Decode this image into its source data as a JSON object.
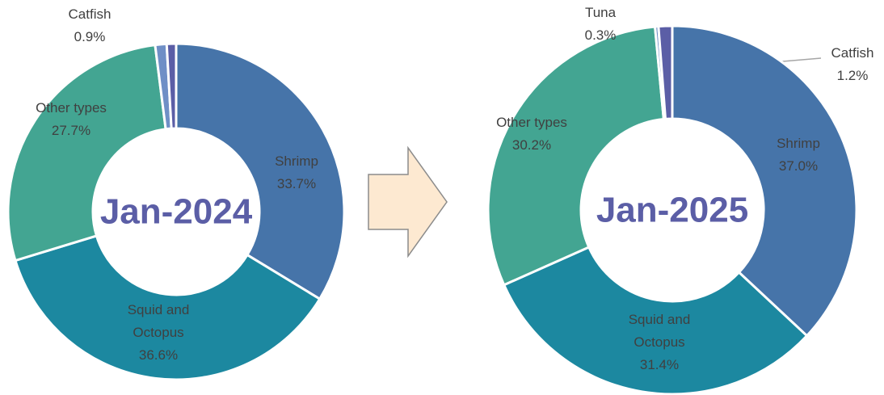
{
  "chart_data": [
    {
      "type": "donut",
      "title": "Jan-2024",
      "categories": [
        "Shrimp",
        "Squid and Octopus",
        "Other types",
        null,
        "Catfish"
      ],
      "values": [
        33.7,
        36.6,
        27.7,
        1.1,
        0.9
      ],
      "value_labels": [
        "33.7%",
        "36.6%",
        "27.7%",
        null,
        "0.9%"
      ],
      "colors": [
        "#4674a9",
        "#1c88a0",
        "#43a592",
        "#6f8fc6",
        "#5b5ea6"
      ]
    },
    {
      "type": "donut",
      "title": "Jan-2025",
      "categories": [
        "Shrimp",
        "Squid and Octopus",
        "Other types",
        "Tuna",
        "Catfish"
      ],
      "values": [
        37.0,
        31.4,
        30.2,
        0.3,
        1.2
      ],
      "value_labels": [
        "37.0%",
        "31.4%",
        "30.2%",
        "0.3%",
        "1.2%"
      ],
      "colors": [
        "#4674a9",
        "#1c88a0",
        "#43a592",
        "#6f8fc6",
        "#5b5ea6"
      ]
    }
  ]
}
